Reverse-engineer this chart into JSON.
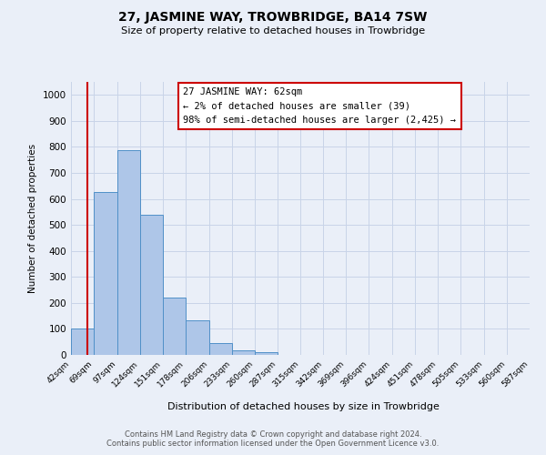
{
  "title": "27, JASMINE WAY, TROWBRIDGE, BA14 7SW",
  "subtitle": "Size of property relative to detached houses in Trowbridge",
  "xlabel": "Distribution of detached houses by size in Trowbridge",
  "ylabel": "Number of detached properties",
  "all_labels": [
    "42sqm",
    "69sqm",
    "97sqm",
    "124sqm",
    "151sqm",
    "178sqm",
    "206sqm",
    "233sqm",
    "260sqm",
    "287sqm",
    "315sqm",
    "342sqm",
    "369sqm",
    "396sqm",
    "424sqm",
    "451sqm",
    "478sqm",
    "505sqm",
    "533sqm",
    "560sqm",
    "587sqm"
  ],
  "bar_left_edges": [
    42,
    69,
    97,
    124,
    151,
    178,
    206,
    233,
    260,
    287,
    315,
    342,
    369,
    396,
    424,
    451,
    478,
    505,
    533,
    560
  ],
  "bar_widths": [
    27,
    28,
    27,
    27,
    27,
    28,
    27,
    27,
    27,
    28,
    27,
    27,
    27,
    28,
    27,
    27,
    27,
    28,
    27,
    27
  ],
  "bar_heights": [
    103,
    625,
    787,
    540,
    220,
    133,
    44,
    17,
    10,
    0,
    0,
    0,
    0,
    0,
    0,
    0,
    0,
    0,
    0,
    0
  ],
  "bar_color": "#aec6e8",
  "bar_edge_color": "#5090c8",
  "property_line_x": 62,
  "property_line_color": "#cc0000",
  "annotation_line1": "27 JASMINE WAY: 62sqm",
  "annotation_line2": "← 2% of detached houses are smaller (39)",
  "annotation_line3": "98% of semi-detached houses are larger (2,425) →",
  "annotation_box_color": "#ffffff",
  "annotation_box_edge_color": "#cc0000",
  "ylim": [
    0,
    1050
  ],
  "yticks": [
    0,
    100,
    200,
    300,
    400,
    500,
    600,
    700,
    800,
    900,
    1000
  ],
  "grid_color": "#c8d4e8",
  "background_color": "#eaeff8",
  "footer_line1": "Contains HM Land Registry data © Crown copyright and database right 2024.",
  "footer_line2": "Contains public sector information licensed under the Open Government Licence v3.0."
}
